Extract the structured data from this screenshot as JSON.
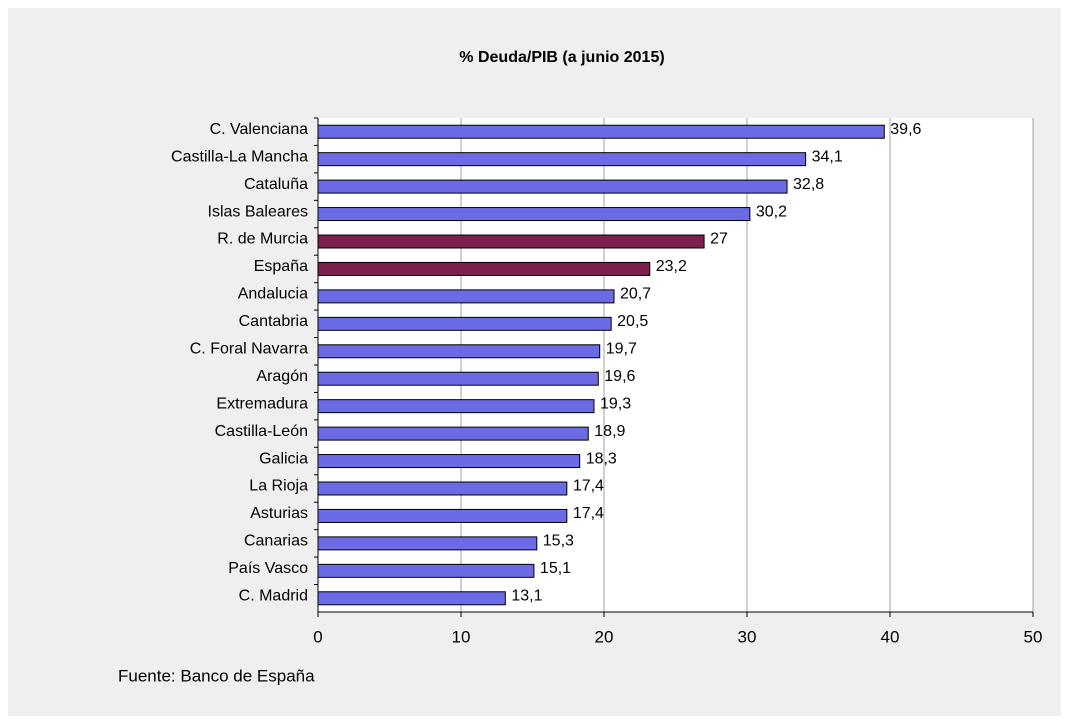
{
  "chart_data": {
    "type": "bar",
    "orientation": "horizontal",
    "title": "% Deuda/PIB (a junio 2015)",
    "categories": [
      "C. Valenciana",
      "Castilla-La Mancha",
      "Cataluña",
      "Islas Baleares",
      "R. de Murcia",
      "España",
      "Andalucia",
      "Cantabria",
      "C. Foral Navarra",
      "Aragón",
      "Extremadura",
      "Castilla-León",
      "Galicia",
      "La Rioja",
      "Asturias",
      "Canarias",
      "País Vasco",
      "C. Madrid"
    ],
    "values": [
      39.6,
      34.1,
      32.8,
      30.2,
      27,
      23.2,
      20.7,
      20.5,
      19.7,
      19.6,
      19.3,
      18.9,
      18.3,
      17.4,
      17.4,
      15.3,
      15.1,
      13.1
    ],
    "value_labels": [
      "39,6",
      "34,1",
      "32,8",
      "30,2",
      "27",
      "23,2",
      "20,7",
      "20,5",
      "19,7",
      "19,6",
      "19,3",
      "18,9",
      "18,3",
      "17,4",
      "17,4",
      "15,3",
      "15,1",
      "13,1"
    ],
    "colors": [
      "#6b6be6",
      "#6b6be6",
      "#6b6be6",
      "#6b6be6",
      "#7b1f4f",
      "#7b1f4f",
      "#6b6be6",
      "#6b6be6",
      "#6b6be6",
      "#6b6be6",
      "#6b6be6",
      "#6b6be6",
      "#6b6be6",
      "#6b6be6",
      "#6b6be6",
      "#6b6be6",
      "#6b6be6",
      "#6b6be6"
    ],
    "xlim": [
      0,
      50
    ],
    "xticks": [
      0,
      10,
      20,
      30,
      40,
      50
    ],
    "grid": true,
    "source": "Fuente: Banco de España"
  }
}
